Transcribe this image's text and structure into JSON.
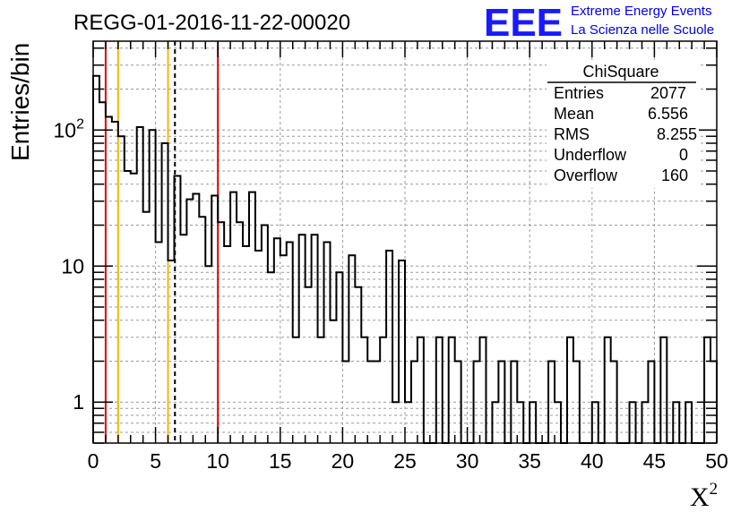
{
  "chart_data": {
    "type": "histogram",
    "title": "REGG-01-2016-11-22-00020",
    "xlabel": "X",
    "xlabel_sup": "2",
    "ylabel": "Entries/bin",
    "x_range": [
      0,
      50
    ],
    "y_range": [
      0.5,
      450
    ],
    "y_scale": "log",
    "grid": true,
    "bin_width": 0.5,
    "bin_values": [
      250,
      160,
      125,
      115,
      90,
      50,
      48,
      105,
      25,
      100,
      15,
      80,
      11,
      46,
      17,
      31,
      34,
      23,
      10,
      33,
      21,
      14,
      35,
      21,
      14,
      35,
      13,
      20,
      9,
      16,
      12,
      15,
      3,
      17,
      7,
      17,
      3,
      15,
      4,
      9,
      2,
      12,
      7,
      3,
      2,
      2,
      3,
      13,
      1,
      11,
      1,
      2,
      3,
      0.3,
      0.3,
      3,
      0.3,
      3,
      2,
      0.3,
      0.3,
      2,
      3,
      0.3,
      1,
      2,
      0.3,
      2,
      1,
      0.3,
      1,
      0.3,
      0.3,
      2,
      1,
      0.3,
      3,
      2,
      0.3,
      0.3,
      1,
      0.3,
      3,
      2,
      0.3,
      0.3,
      1,
      0.3,
      1,
      2,
      0.3,
      3,
      0.3,
      1,
      0.3,
      1,
      0.3,
      0.3,
      3,
      2
    ],
    "x_ticks": [
      "0",
      "5",
      "10",
      "15",
      "20",
      "25",
      "30",
      "35",
      "40",
      "45",
      "50"
    ],
    "y_tick_labels": [
      {
        "value": 1,
        "label": "1"
      },
      {
        "value": 10,
        "label": "10"
      },
      {
        "value": 100,
        "label": "10",
        "sup": "2"
      }
    ],
    "reference_lines": [
      {
        "x": 1,
        "color": "#e00000",
        "style": "solid"
      },
      {
        "x": 2,
        "color": "#f5b800",
        "style": "solid"
      },
      {
        "x": 6,
        "color": "#f5b800",
        "style": "solid"
      },
      {
        "x": 6.556,
        "color": "#000000",
        "style": "dashed"
      },
      {
        "x": 10,
        "color": "#e00000",
        "style": "solid"
      }
    ],
    "stats": {
      "name": "ChiSquare",
      "rows": [
        {
          "label": "Entries",
          "value": "2077"
        },
        {
          "label": "Mean",
          "value": "6.556"
        },
        {
          "label": "RMS",
          "value": "8.255"
        },
        {
          "label": "Underflow",
          "value": "0"
        },
        {
          "label": "Overflow",
          "value": "160"
        }
      ]
    }
  },
  "logo": {
    "text": "EEE",
    "line1": "Extreme Energy Events",
    "line2": "La Scienza nelle Scuole",
    "color": "#1a1aff"
  }
}
